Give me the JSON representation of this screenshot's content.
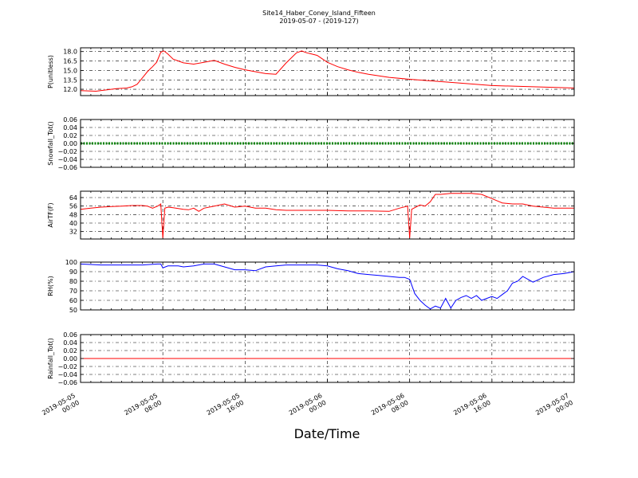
{
  "title": "Site14_Haber_Coney_Island_Fifteen",
  "subtitle": "2019-05-07 - (2019-127)",
  "xlabel": "Date/Time",
  "x_ticks": [
    {
      "hours": 0,
      "line1": "2019-05-05",
      "line2": "00:00"
    },
    {
      "hours": 8,
      "line1": "2019-05-05",
      "line2": "08:00"
    },
    {
      "hours": 16,
      "line1": "2019-05-05",
      "line2": "16:00"
    },
    {
      "hours": 24,
      "line1": "2019-05-06",
      "line2": "00:00"
    },
    {
      "hours": 32,
      "line1": "2019-05-06",
      "line2": "08:00"
    },
    {
      "hours": 40,
      "line1": "2019-05-06",
      "line2": "16:00"
    },
    {
      "hours": 48,
      "line1": "2019-05-07",
      "line2": "00:00"
    }
  ],
  "chart_data": [
    {
      "type": "line",
      "ylabel": "P(unitless)",
      "color": "#ff0000",
      "ylim": [
        11.0,
        18.6
      ],
      "yticks": [
        12.0,
        13.5,
        15.0,
        16.5,
        18.0
      ],
      "ytick_labels": [
        "12.0",
        "13.5",
        "15.0",
        "16.5",
        "18.0"
      ],
      "grid": true,
      "x": [
        0,
        1.5,
        2.5,
        3.5,
        4.5,
        5.0,
        5.5,
        6.0,
        6.5,
        6.8,
        7.0,
        7.4,
        7.8,
        8.1,
        8.5,
        9.0,
        10.0,
        11.0,
        12.0,
        13.0,
        14.0,
        15.0,
        16.0,
        17.0,
        18.0,
        19.0,
        20.0,
        21.0,
        21.5,
        22.0,
        22.5,
        23.0,
        24.0,
        25.0,
        26.0,
        27.0,
        28.0,
        30.0,
        32.0,
        36.0,
        40.0,
        44.0,
        48.0
      ],
      "y": [
        11.8,
        11.7,
        11.9,
        12.1,
        12.2,
        12.4,
        12.8,
        13.8,
        14.8,
        15.3,
        15.6,
        16.3,
        17.9,
        18.1,
        17.6,
        16.8,
        16.2,
        16.0,
        16.3,
        16.6,
        16.0,
        15.5,
        15.1,
        14.8,
        14.5,
        14.4,
        16.2,
        17.8,
        18.1,
        17.8,
        17.6,
        17.4,
        16.3,
        15.6,
        15.1,
        14.7,
        14.4,
        13.9,
        13.6,
        13.1,
        12.6,
        12.4,
        12.2
      ]
    },
    {
      "type": "line",
      "ylabel": "Snowfall_Tot()",
      "color": "#008000",
      "ylim": [
        -0.06,
        0.06
      ],
      "yticks": [
        -0.06,
        -0.04,
        -0.02,
        0.0,
        0.02,
        0.04,
        0.06
      ],
      "ytick_labels": [
        "−0.06",
        "−0.04",
        "−0.02",
        "0.00",
        "0.02",
        "0.04",
        "0.06"
      ],
      "grid": true,
      "x": [
        0,
        48
      ],
      "y": [
        0.0,
        0.0
      ]
    },
    {
      "type": "line",
      "ylabel": "AirTF(F)",
      "color": "#ff0000",
      "ylim": [
        25,
        70
      ],
      "yticks": [
        32,
        40,
        48,
        56,
        64
      ],
      "ytick_labels": [
        "32",
        "40",
        "48",
        "56",
        "64"
      ],
      "grid": true,
      "x": [
        0,
        1,
        2,
        3,
        4,
        5,
        6,
        6.5,
        7,
        7.5,
        7.8,
        8.0,
        8.2,
        8.5,
        9,
        10,
        10.5,
        11,
        11.5,
        12,
        13,
        14,
        15,
        16,
        17,
        18,
        19,
        20,
        22,
        24,
        26,
        28,
        30,
        31,
        31.8,
        32.0,
        32.2,
        33,
        33.5,
        34,
        34.5,
        35,
        36,
        37,
        38,
        39,
        40,
        41,
        42,
        43,
        44,
        45,
        46,
        47,
        48
      ],
      "y": [
        53,
        54,
        55,
        55.5,
        56,
        56.5,
        56.5,
        56,
        54,
        56,
        58,
        26,
        54,
        55,
        54.5,
        53,
        52.5,
        54,
        51,
        54,
        56,
        58,
        55,
        56,
        54,
        54,
        52.5,
        52,
        52,
        52,
        51.5,
        51.5,
        51,
        54,
        56,
        26,
        53,
        57,
        56,
        60,
        67,
        67,
        68,
        68,
        68,
        67,
        63,
        59,
        58,
        58,
        56,
        55,
        54,
        54,
        54
      ]
    },
    {
      "type": "line",
      "ylabel": "RH(%)",
      "color": "#0000ff",
      "ylim": [
        50,
        100
      ],
      "yticks": [
        50,
        60,
        70,
        80,
        90,
        100
      ],
      "ytick_labels": [
        "50",
        "60",
        "70",
        "80",
        "90",
        "100"
      ],
      "grid": true,
      "x": [
        0,
        2,
        4,
        6,
        7.5,
        7.8,
        8.0,
        8.5,
        9.5,
        10,
        11,
        12,
        13,
        14,
        15,
        16,
        17,
        18,
        19,
        20,
        21,
        22,
        23,
        24,
        25,
        26,
        27,
        28,
        29,
        30,
        31,
        31.5,
        32.0,
        32.5,
        33,
        33.5,
        34,
        34.5,
        35,
        35.5,
        36,
        36.5,
        37,
        37.5,
        38,
        38.5,
        39,
        40,
        40.5,
        41,
        41.5,
        42,
        42.5,
        43,
        44,
        45,
        46,
        47,
        48
      ],
      "y": [
        98,
        97,
        97,
        97,
        98,
        98,
        94,
        96,
        96,
        95,
        96,
        98,
        98,
        95,
        92,
        92,
        91,
        95,
        96,
        97,
        97,
        97,
        97,
        96,
        93,
        91,
        88,
        87,
        86,
        85,
        84,
        84,
        82,
        67,
        60,
        55,
        51,
        54,
        52,
        62,
        52,
        60,
        63,
        65,
        62,
        65,
        60,
        64,
        62,
        66,
        70,
        78,
        80,
        85,
        79,
        84,
        87,
        88,
        90
      ]
    },
    {
      "type": "line",
      "ylabel": "Rainfall_Tot()",
      "color": "#ff0000",
      "ylim": [
        -0.06,
        0.06
      ],
      "yticks": [
        -0.06,
        -0.04,
        -0.02,
        0.0,
        0.02,
        0.04,
        0.06
      ],
      "ytick_labels": [
        "−0.06",
        "−0.04",
        "−0.02",
        "0.00",
        "0.02",
        "0.04",
        "0.06"
      ],
      "grid": true,
      "x": [
        0,
        48
      ],
      "y": [
        0.0,
        0.0
      ]
    }
  ]
}
